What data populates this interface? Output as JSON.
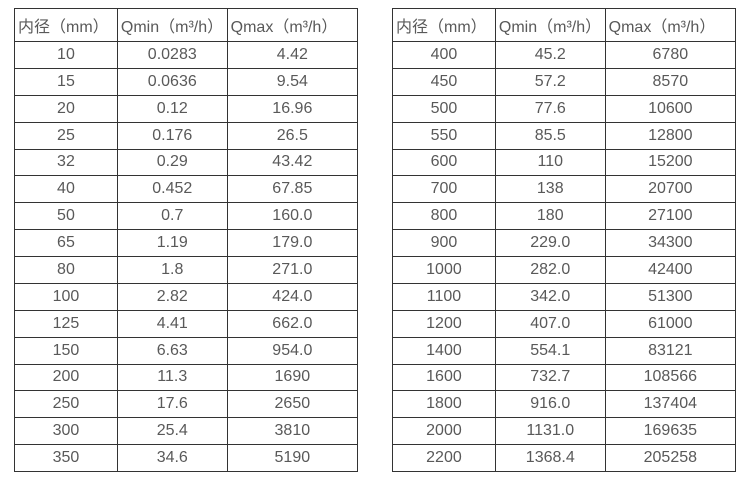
{
  "style": {
    "background": "#ffffff",
    "text_color": "#595959",
    "border_color": "#333333"
  },
  "chart_data": [
    {
      "type": "table",
      "headers": [
        "内径（mm）",
        "Qmin（m³/h）",
        "Qmax（m³/h）"
      ],
      "rows": [
        [
          "10",
          "0.0283",
          "4.42"
        ],
        [
          "15",
          "0.0636",
          "9.54"
        ],
        [
          "20",
          "0.12",
          "16.96"
        ],
        [
          "25",
          "0.176",
          "26.5"
        ],
        [
          "32",
          "0.29",
          "43.42"
        ],
        [
          "40",
          "0.452",
          "67.85"
        ],
        [
          "50",
          "0.7",
          "160.0"
        ],
        [
          "65",
          "1.19",
          "179.0"
        ],
        [
          "80",
          "1.8",
          "271.0"
        ],
        [
          "100",
          "2.82",
          "424.0"
        ],
        [
          "125",
          "4.41",
          "662.0"
        ],
        [
          "150",
          "6.63",
          "954.0"
        ],
        [
          "200",
          "11.3",
          "1690"
        ],
        [
          "250",
          "17.6",
          "2650"
        ],
        [
          "300",
          "25.4",
          "3810"
        ],
        [
          "350",
          "34.6",
          "5190"
        ]
      ]
    },
    {
      "type": "table",
      "headers": [
        "内径（mm）",
        "Qmin（m³/h）",
        "Qmax（m³/h）"
      ],
      "rows": [
        [
          "400",
          "45.2",
          "6780"
        ],
        [
          "450",
          "57.2",
          "8570"
        ],
        [
          "500",
          "77.6",
          "10600"
        ],
        [
          "550",
          "85.5",
          "12800"
        ],
        [
          "600",
          "110",
          "15200"
        ],
        [
          "700",
          "138",
          "20700"
        ],
        [
          "800",
          "180",
          "27100"
        ],
        [
          "900",
          "229.0",
          "34300"
        ],
        [
          "1000",
          "282.0",
          "42400"
        ],
        [
          "1100",
          "342.0",
          "51300"
        ],
        [
          "1200",
          "407.0",
          "61000"
        ],
        [
          "1400",
          "554.1",
          "83121"
        ],
        [
          "1600",
          "732.7",
          "108566"
        ],
        [
          "1800",
          "916.0",
          "137404"
        ],
        [
          "2000",
          "1131.0",
          "169635"
        ],
        [
          "2200",
          "1368.4",
          "205258"
        ]
      ]
    }
  ]
}
